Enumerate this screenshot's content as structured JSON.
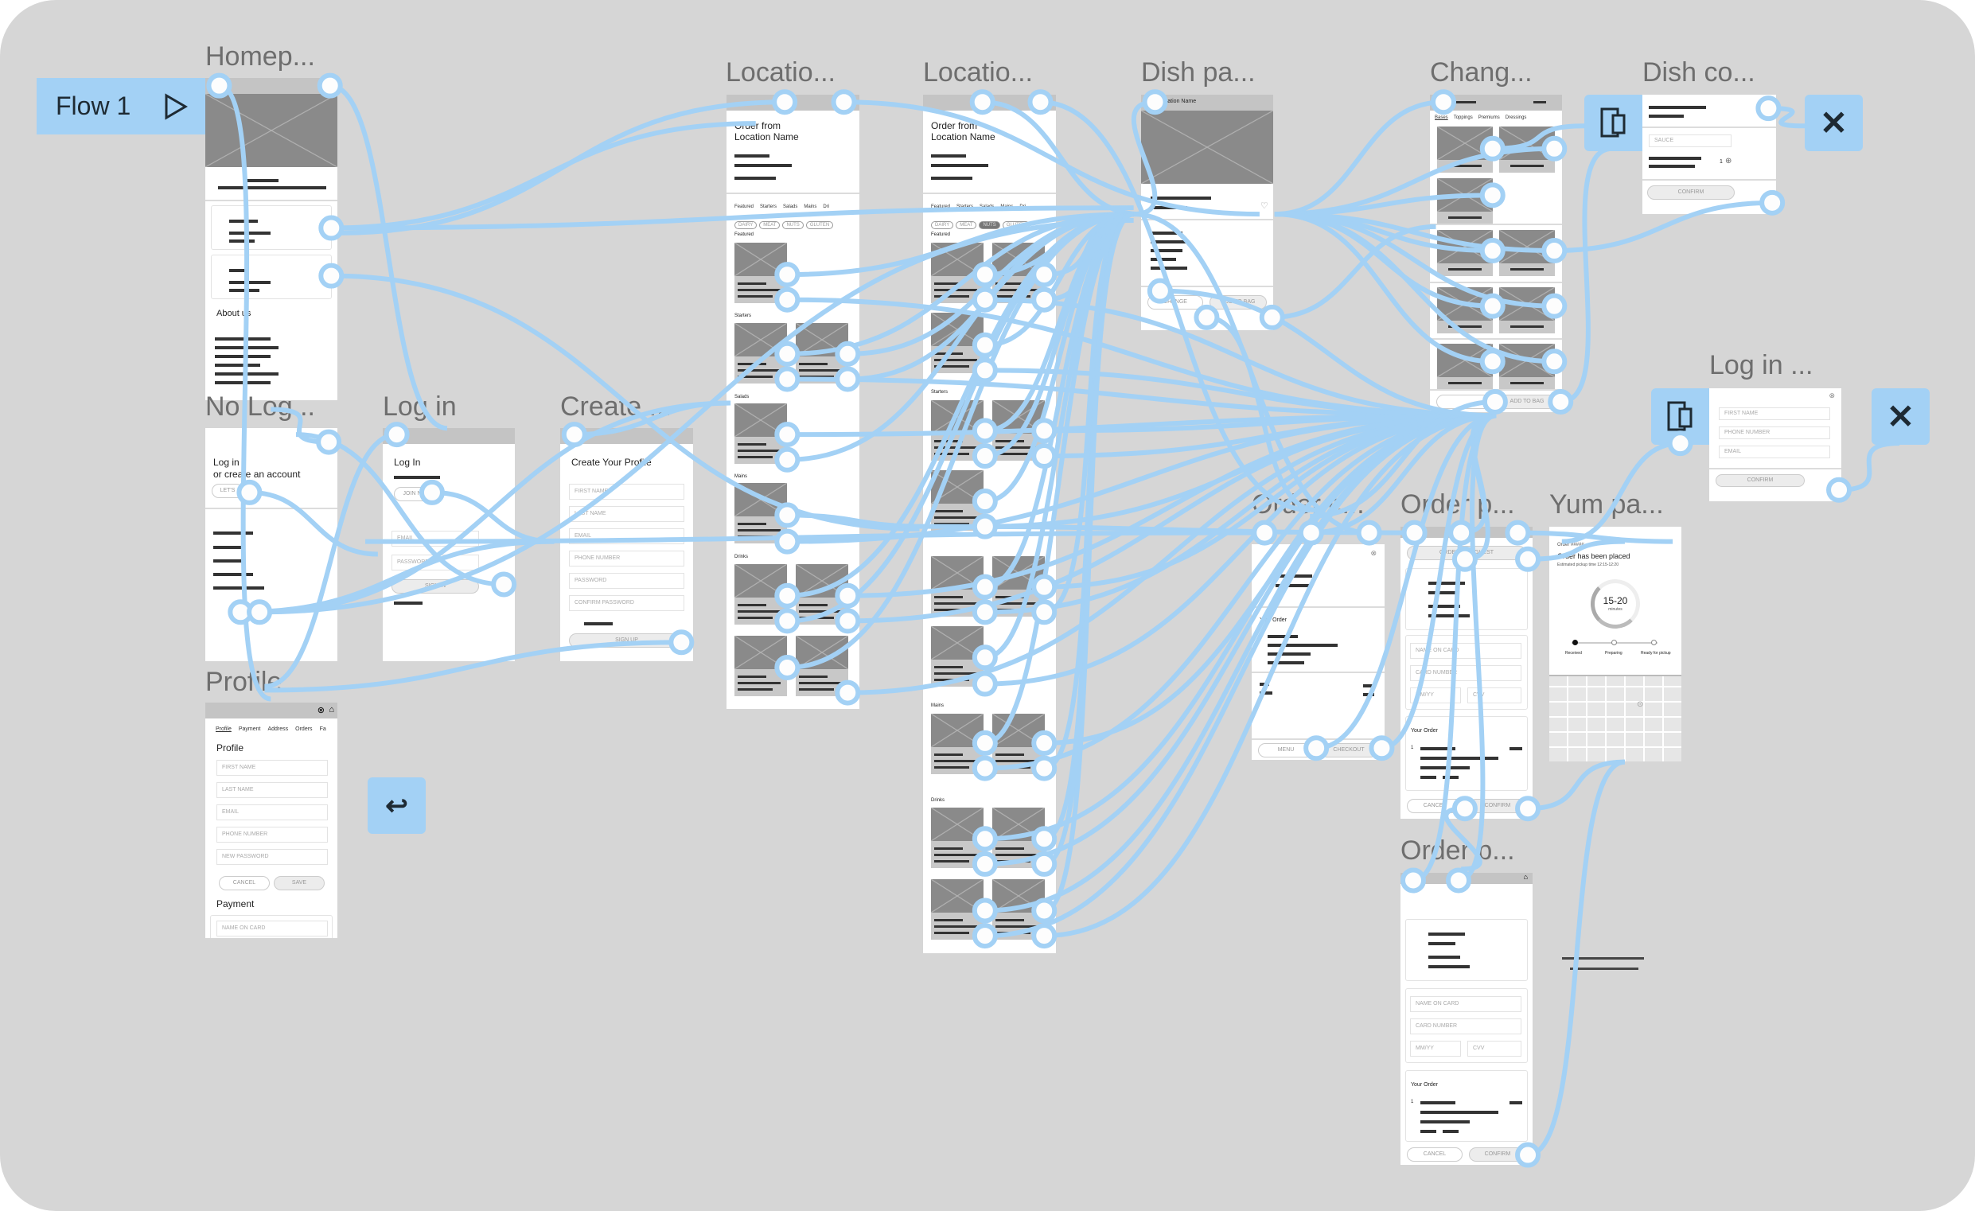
{
  "flow": {
    "label": "Flow 1",
    "icon": "play-icon"
  },
  "colors": {
    "canvas": "#d6d6d6",
    "connector": "#a3d1f5",
    "frame": "#ffffff"
  },
  "frames": {
    "homepage": {
      "title": "Homep...",
      "about": "About us"
    },
    "no_login": {
      "title": "No Log...",
      "heading1": "Log in",
      "heading2": "or create an account",
      "button": "LET'S"
    },
    "login": {
      "title": "Log in",
      "heading": "Log In",
      "join": "JOIN N",
      "email": "EMAIL",
      "password": "PASSWORD",
      "signin": "SIGN IN"
    },
    "create": {
      "title": "Create ...",
      "heading": "Create Your Profile",
      "fields": [
        "FIRST NAME",
        "LAST NAME",
        "EMAIL",
        "PHONE NUMBER",
        "PASSWORD",
        "CONFIRM PASSWORD"
      ],
      "button": "SIGN UP"
    },
    "profile": {
      "title": "Profile ...",
      "tabs": [
        "Profile",
        "Payment",
        "Address",
        "Orders",
        "Fa"
      ],
      "heading": "Profile",
      "fields": [
        "FIRST NAME",
        "LAST NAME",
        "EMAIL",
        "PHONE NUMBER",
        "NEW PASSWORD"
      ],
      "cancel": "CANCEL",
      "save": "SAVE",
      "payment": "Payment",
      "card_field": "NAME ON CARD"
    },
    "location1": {
      "title": "Locatio...",
      "line1": "Order from",
      "line2": "Location Name",
      "tabs": [
        "Featured",
        "Starters",
        "Salads",
        "Mains",
        "Dri"
      ],
      "chips": [
        "DAIRY",
        "MEAT",
        "NUTS",
        "GLUTEN"
      ],
      "sections": [
        "Featured",
        "Starters",
        "Salads",
        "Mains",
        "Drinks"
      ]
    },
    "location2": {
      "title": "Locatio...",
      "line1": "Order from",
      "line2": "Location Name",
      "tabs": [
        "Featured",
        "Starters",
        "Salads",
        "Mains",
        "Dri"
      ],
      "chips": [
        "DAIRY",
        "MEAT",
        "NUTS",
        "GLUTEN"
      ],
      "active_chip": "NUTS",
      "sections": [
        "Featured",
        "Starters",
        "Mains",
        "Drinks"
      ]
    },
    "dish": {
      "title": "Dish pa...",
      "header": "Location Name",
      "change": "CHANGE",
      "add": "ADD TO BAG"
    },
    "change": {
      "title": "Chang...",
      "tabs": [
        "Bases",
        "Toppings",
        "Premiums",
        "Dressings"
      ],
      "add": "ADD TO BAG"
    },
    "dish_confirm": {
      "title": "Dish co...",
      "select": "SAUCE",
      "qty": "1",
      "confirm": "CONFIRM"
    },
    "login_overlay": {
      "title": "Log in ...",
      "fields": [
        "FIRST NAME",
        "PHONE NUMBER",
        "EMAIL"
      ],
      "confirm": "CONFIRM"
    },
    "order_cart": {
      "title": "Order c...",
      "your_order": "Your Order",
      "menu": "MENU",
      "checkout": "CHECKOUT"
    },
    "order_pay": {
      "title": "Order p...",
      "guest": "ORDER AS A GUEST",
      "fields": [
        "NAME ON CARD",
        "CARD NUMBER",
        "MM/YY",
        "CVV"
      ],
      "your_order": "Your Order",
      "qty": "1",
      "cancel": "CANCEL",
      "confirm": "CONFIRM"
    },
    "order_pay2": {
      "title": "Order p...",
      "fields": [
        "NAME ON CARD",
        "CARD NUMBER",
        "MM/YY",
        "CVV"
      ],
      "your_order": "Your Order",
      "qty": "1",
      "cancel": "CANCEL",
      "confirm": "CONFIRM"
    },
    "yum": {
      "title": "Yum pa...",
      "order_no": "Order #####",
      "placed": "Order has been placed",
      "eta": "Estimated pickup time 12:15-12:20",
      "time": "15-20",
      "unit": "minutes",
      "steps": [
        "Received",
        "Preparing",
        "Ready for pickup"
      ],
      "progress_step": 1
    }
  }
}
